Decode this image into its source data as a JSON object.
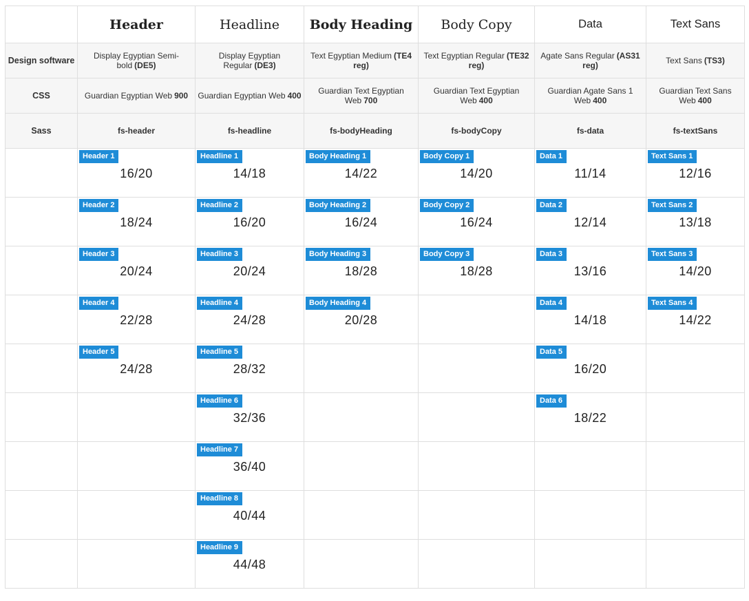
{
  "colors": {
    "badge_blue": "#1e8cd7",
    "border": "#dedede",
    "meta_row_bg": "#f6f6f6",
    "badge_text": "#ffffff",
    "text_dark": "#222222"
  },
  "row_labels": {
    "design": "Design software",
    "css": "CSS",
    "sass": "Sass"
  },
  "grid": {
    "size_row_count": 9
  },
  "columns": [
    {
      "key": "header",
      "label": "Header",
      "style": "serif-bold",
      "design": {
        "name": "Display Egyptian Semi-bold",
        "code": "(DE5)"
      },
      "css": {
        "name": "Guardian Egyptian Web",
        "weight": "900"
      },
      "sass": "fs-header",
      "sizes": [
        {
          "badge": "Header 1",
          "value": "16/20"
        },
        {
          "badge": "Header 2",
          "value": "18/24"
        },
        {
          "badge": "Header 3",
          "value": "20/24"
        },
        {
          "badge": "Header 4",
          "value": "22/28"
        },
        {
          "badge": "Header 5",
          "value": "24/28"
        }
      ]
    },
    {
      "key": "headline",
      "label": "Headline",
      "style": "serif",
      "design": {
        "name": "Display Egyptian Regular",
        "code": "(DE3)"
      },
      "css": {
        "name": "Guardian Egyptian Web",
        "weight": "400"
      },
      "sass": "fs-headline",
      "sizes": [
        {
          "badge": "Headline 1",
          "value": "14/18"
        },
        {
          "badge": "Headline 2",
          "value": "16/20"
        },
        {
          "badge": "Headline 3",
          "value": "20/24"
        },
        {
          "badge": "Headline 4",
          "value": "24/28"
        },
        {
          "badge": "Headline 5",
          "value": "28/32"
        },
        {
          "badge": "Headline 6",
          "value": "32/36"
        },
        {
          "badge": "Headline 7",
          "value": "36/40"
        },
        {
          "badge": "Headline 8",
          "value": "40/44"
        },
        {
          "badge": "Headline 9",
          "value": "44/48"
        }
      ]
    },
    {
      "key": "bodyHeading",
      "label": "Body Heading",
      "style": "serif-bold",
      "design": {
        "name": "Text Egyptian Medium",
        "code": "(TE4 reg)"
      },
      "css": {
        "name": "Guardian Text Egyptian Web",
        "weight": "700"
      },
      "sass": "fs-bodyHeading",
      "sizes": [
        {
          "badge": "Body Heading 1",
          "value": "14/22"
        },
        {
          "badge": "Body Heading 2",
          "value": "16/24"
        },
        {
          "badge": "Body Heading 3",
          "value": "18/28"
        },
        {
          "badge": "Body Heading 4",
          "value": "20/28"
        }
      ]
    },
    {
      "key": "bodyCopy",
      "label": "Body Copy",
      "style": "serif",
      "design": {
        "name": "Text Egyptian Regular",
        "code": "(TE32 reg)"
      },
      "css": {
        "name": "Guardian Text Egyptian Web",
        "weight": "400"
      },
      "sass": "fs-bodyCopy",
      "sizes": [
        {
          "badge": "Body Copy 1",
          "value": "14/20"
        },
        {
          "badge": "Body Copy 2",
          "value": "16/24"
        },
        {
          "badge": "Body Copy 3",
          "value": "18/28"
        }
      ]
    },
    {
      "key": "data",
      "label": "Data",
      "style": "sans",
      "design": {
        "name": "Agate Sans Regular",
        "code": "(AS31 reg)"
      },
      "css": {
        "name": "Guardian Agate Sans 1 Web",
        "weight": "400"
      },
      "sass": "fs-data",
      "sizes": [
        {
          "badge": "Data 1",
          "value": "11/14"
        },
        {
          "badge": "Data 2",
          "value": "12/14"
        },
        {
          "badge": "Data 3",
          "value": "13/16"
        },
        {
          "badge": "Data 4",
          "value": "14/18"
        },
        {
          "badge": "Data 5",
          "value": "16/20"
        },
        {
          "badge": "Data 6",
          "value": "18/22"
        }
      ]
    },
    {
      "key": "textSans",
      "label": "Text Sans",
      "style": "sans",
      "design": {
        "name": "Text Sans",
        "code": "(TS3)"
      },
      "css": {
        "name": "Guardian Text Sans Web",
        "weight": "400"
      },
      "sass": "fs-textSans",
      "sizes": [
        {
          "badge": "Text Sans 1",
          "value": "12/16"
        },
        {
          "badge": "Text Sans 2",
          "value": "13/18"
        },
        {
          "badge": "Text Sans 3",
          "value": "14/20"
        },
        {
          "badge": "Text Sans 4",
          "value": "14/22"
        }
      ]
    }
  ]
}
